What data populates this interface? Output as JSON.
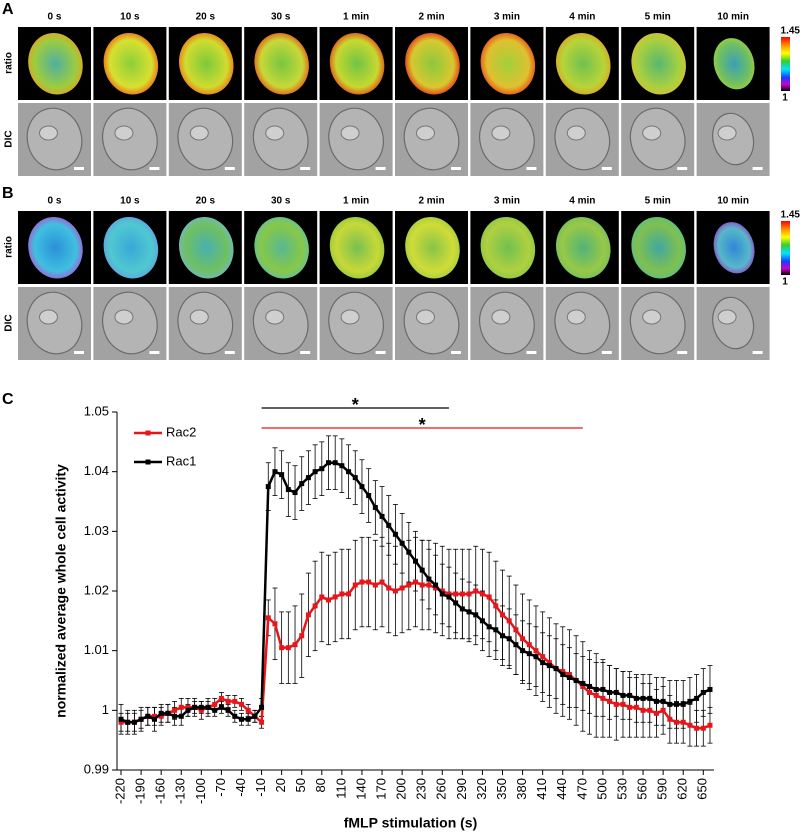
{
  "panels": [
    {
      "label": "A",
      "times": [
        "0 s",
        "10 s",
        "20 s",
        "30 s",
        "1 min",
        "2 min",
        "3 min",
        "4 min",
        "5 min",
        "10 min"
      ],
      "rows": [
        "ratio",
        "DIC"
      ],
      "colorbar": {
        "max": 1.45,
        "min": 1
      }
    },
    {
      "label": "B",
      "times": [
        "0 s",
        "10 s",
        "20 s",
        "30 s",
        "1 min",
        "2 min",
        "3 min",
        "4 min",
        "5 min",
        "10 min"
      ],
      "rows": [
        "ratio",
        "DIC"
      ],
      "colorbar": {
        "max": 1.45,
        "min": 1
      }
    }
  ],
  "chart_label": "C",
  "chart_data": {
    "type": "line",
    "xlabel": "fMLP stimulation (s)",
    "ylabel": "normalized average whole cell activity",
    "x": [
      -220,
      -210,
      -200,
      -190,
      -180,
      -170,
      -160,
      -150,
      -140,
      -130,
      -120,
      -110,
      -100,
      -90,
      -80,
      -70,
      -60,
      -50,
      -40,
      -30,
      -20,
      -10,
      0,
      10,
      20,
      30,
      40,
      50,
      60,
      70,
      80,
      90,
      100,
      110,
      120,
      130,
      140,
      150,
      160,
      170,
      180,
      190,
      200,
      210,
      220,
      230,
      240,
      250,
      260,
      270,
      280,
      290,
      300,
      310,
      320,
      330,
      340,
      350,
      360,
      370,
      380,
      390,
      400,
      410,
      420,
      430,
      440,
      450,
      460,
      470,
      480,
      490,
      500,
      510,
      520,
      530,
      540,
      550,
      560,
      570,
      580,
      590,
      600,
      610,
      620,
      630,
      640,
      650,
      660
    ],
    "xlim": [
      -226,
      666
    ],
    "xticks": [
      -220,
      -190,
      -160,
      -130,
      -100,
      -70,
      -40,
      -10,
      20,
      50,
      80,
      110,
      140,
      170,
      200,
      230,
      260,
      290,
      320,
      350,
      380,
      410,
      440,
      470,
      500,
      530,
      560,
      590,
      620,
      650
    ],
    "ylim": [
      0.99,
      1.05
    ],
    "yticks": [
      0.99,
      1,
      1.01,
      1.02,
      1.03,
      1.04,
      1.05
    ],
    "legend": "upper left",
    "series": [
      {
        "name": "Rac2",
        "color": "#e8161b",
        "values": [
          0.998,
          0.998,
          0.998,
          0.9985,
          0.999,
          0.999,
          0.999,
          0.9995,
          1.0,
          1.0005,
          1.0005,
          1.0005,
          1.0,
          1.0005,
          1.001,
          1.002,
          1.0015,
          1.0015,
          1.001,
          1.0,
          0.999,
          0.998,
          1.0155,
          1.0145,
          1.0105,
          1.0105,
          1.011,
          1.0125,
          1.016,
          1.0175,
          1.019,
          1.0185,
          1.019,
          1.0195,
          1.0195,
          1.021,
          1.0215,
          1.0215,
          1.021,
          1.0215,
          1.0205,
          1.02,
          1.0205,
          1.021,
          1.0215,
          1.021,
          1.021,
          1.0205,
          1.02,
          1.0195,
          1.0195,
          1.0195,
          1.0195,
          1.02,
          1.0195,
          1.019,
          1.0175,
          1.016,
          1.015,
          1.0135,
          1.012,
          1.011,
          1.01,
          1.009,
          1.008,
          1.007,
          1.0065,
          1.006,
          1.005,
          1.004,
          1.003,
          1.0025,
          1.002,
          1.0015,
          1.001,
          1.001,
          1.0005,
          1.0005,
          1.0,
          1.0,
          0.9995,
          1.0,
          0.9985,
          0.998,
          0.998,
          0.9975,
          0.997,
          0.997,
          0.9975
        ],
        "errors": [
          0.0015,
          0.0015,
          0.0015,
          0.0015,
          0.0015,
          0.0015,
          0.0015,
          0.0015,
          0.0015,
          0.0015,
          0.0015,
          0.0015,
          0.0015,
          0.0015,
          0.001,
          0.001,
          0.001,
          0.001,
          0.001,
          0.001,
          0.001,
          0.001,
          0.003,
          0.006,
          0.006,
          0.006,
          0.0065,
          0.007,
          0.007,
          0.0075,
          0.0075,
          0.0075,
          0.0075,
          0.0075,
          0.0075,
          0.0075,
          0.0075,
          0.0075,
          0.0075,
          0.0075,
          0.0075,
          0.0075,
          0.0075,
          0.0075,
          0.0075,
          0.0075,
          0.0075,
          0.0075,
          0.0075,
          0.0075,
          0.0075,
          0.0075,
          0.0075,
          0.0075,
          0.0075,
          0.0075,
          0.0075,
          0.0075,
          0.0075,
          0.0075,
          0.0075,
          0.0075,
          0.0075,
          0.0075,
          0.0075,
          0.0075,
          0.0075,
          0.0075,
          0.0075,
          0.0075,
          0.007,
          0.007,
          0.0065,
          0.006,
          0.006,
          0.0055,
          0.005,
          0.005,
          0.0045,
          0.0045,
          0.004,
          0.004,
          0.004,
          0.0035,
          0.0035,
          0.0035,
          0.003,
          0.003,
          0.003
        ]
      },
      {
        "name": "Rac1",
        "color": "#000000",
        "values": [
          0.9985,
          0.998,
          0.998,
          0.9985,
          0.999,
          0.9985,
          0.9995,
          0.9995,
          0.999,
          0.999,
          1.0,
          1.0005,
          1.0005,
          1.0005,
          1.0,
          1.0005,
          1.0,
          0.999,
          0.9985,
          0.9985,
          0.999,
          1.0005,
          1.0375,
          1.04,
          1.0395,
          1.037,
          1.0365,
          1.038,
          1.039,
          1.04,
          1.0405,
          1.0415,
          1.0415,
          1.041,
          1.04,
          1.039,
          1.0375,
          1.036,
          1.034,
          1.0325,
          1.031,
          1.0295,
          1.028,
          1.0265,
          1.025,
          1.0235,
          1.022,
          1.021,
          1.0195,
          1.019,
          1.018,
          1.017,
          1.0165,
          1.016,
          1.015,
          1.014,
          1.0135,
          1.0125,
          1.012,
          1.011,
          1.01,
          1.0095,
          1.009,
          1.008,
          1.0075,
          1.007,
          1.006,
          1.0055,
          1.005,
          1.0045,
          1.004,
          1.0035,
          1.0035,
          1.003,
          1.003,
          1.0025,
          1.0025,
          1.002,
          1.002,
          1.002,
          1.0015,
          1.0015,
          1.001,
          1.001,
          1.001,
          1.0015,
          1.002,
          1.003,
          1.0035
        ],
        "errors": [
          0.0025,
          0.002,
          0.002,
          0.002,
          0.0015,
          0.002,
          0.0015,
          0.0015,
          0.0015,
          0.0015,
          0.001,
          0.001,
          0.001,
          0.001,
          0.001,
          0.001,
          0.001,
          0.001,
          0.001,
          0.001,
          0.001,
          0.0015,
          0.004,
          0.004,
          0.004,
          0.0045,
          0.0045,
          0.0045,
          0.0045,
          0.0045,
          0.0045,
          0.0045,
          0.0045,
          0.0045,
          0.0045,
          0.0045,
          0.0045,
          0.0045,
          0.0045,
          0.005,
          0.005,
          0.005,
          0.005,
          0.005,
          0.005,
          0.005,
          0.005,
          0.005,
          0.005,
          0.005,
          0.005,
          0.005,
          0.005,
          0.005,
          0.005,
          0.005,
          0.005,
          0.005,
          0.005,
          0.005,
          0.005,
          0.005,
          0.005,
          0.005,
          0.005,
          0.005,
          0.005,
          0.005,
          0.0045,
          0.0045,
          0.0045,
          0.0045,
          0.0045,
          0.0045,
          0.004,
          0.004,
          0.004,
          0.004,
          0.004,
          0.004,
          0.004,
          0.004,
          0.004,
          0.004,
          0.004,
          0.004,
          0.004,
          0.004,
          0.004
        ]
      }
    ],
    "annotations": [
      {
        "text": "*",
        "x": [
          -10,
          270
        ],
        "color": "#000000"
      },
      {
        "text": "*",
        "x": [
          -10,
          470
        ],
        "color": "#e8161b"
      }
    ]
  }
}
